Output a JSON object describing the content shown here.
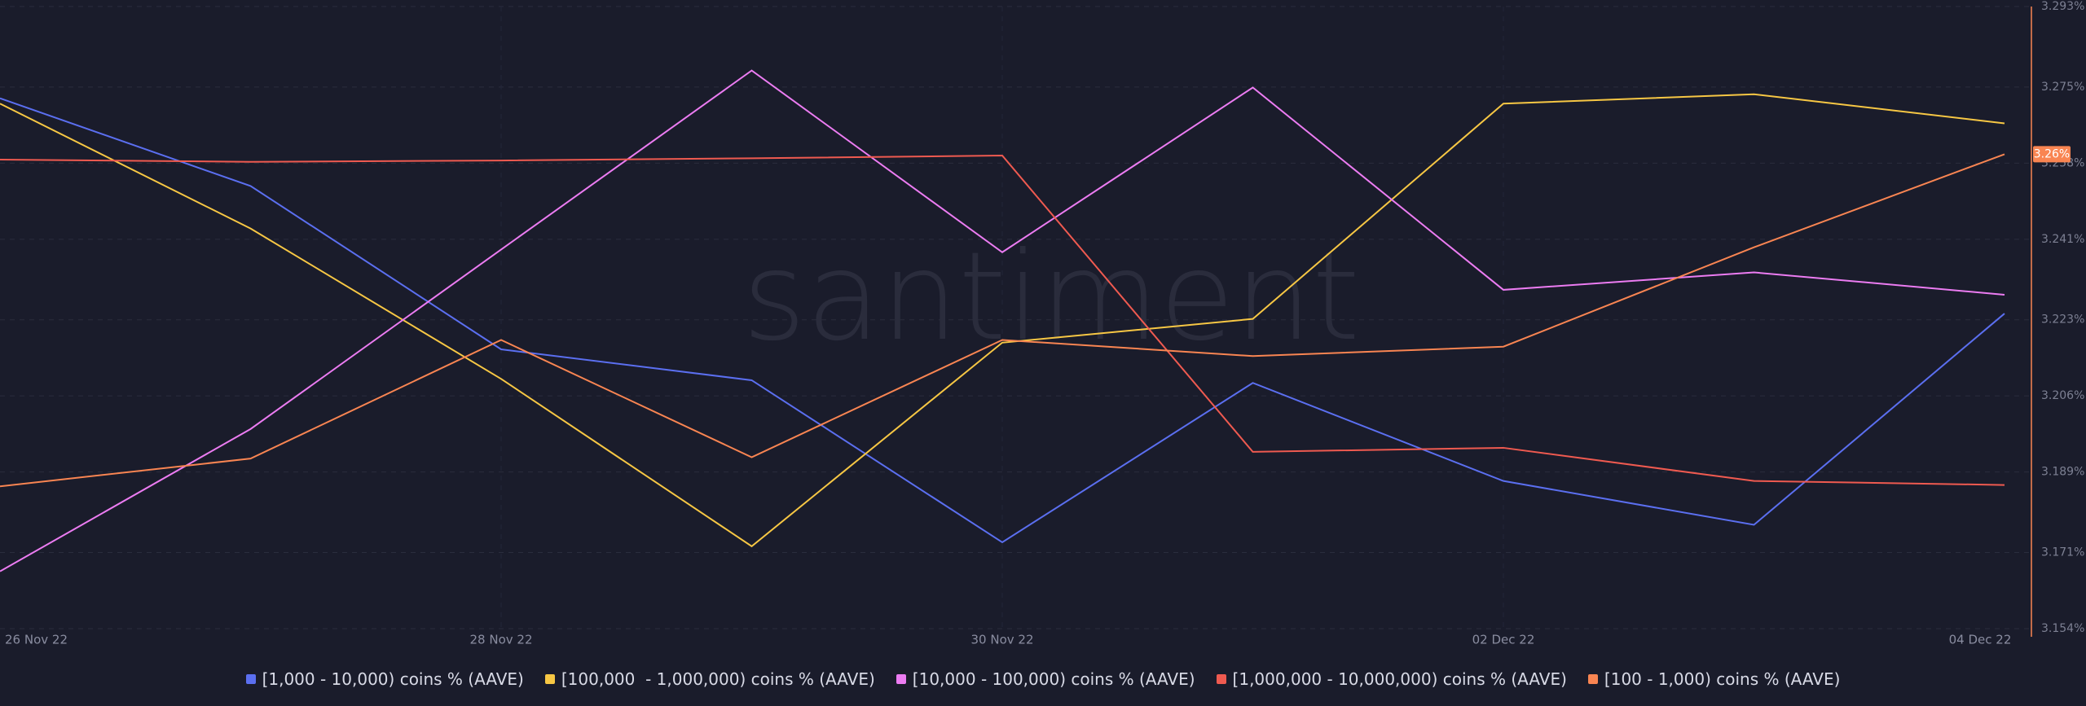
{
  "chart_data": {
    "type": "line",
    "watermark": "santiment",
    "categories": [
      "26 Nov 22",
      null,
      "28 Nov 22",
      null,
      "30 Nov 22",
      null,
      "02 Dec 22",
      null,
      "04 Dec 22"
    ],
    "series": [
      {
        "name": "[1,000 - 10,000) coins % (AAVE)",
        "color": "#5b6ff0",
        "values": [
          3.2725,
          3.2529,
          3.2164,
          3.2095,
          3.1733,
          3.2089,
          3.187,
          3.1772,
          3.2244
        ]
      },
      {
        "name": "[100,000  - 1,000,000) coins % (AAVE)",
        "color": "#f7c744",
        "values": [
          3.2713,
          3.2434,
          3.2098,
          3.1724,
          3.2179,
          3.2232,
          3.2713,
          3.2734,
          3.2669
        ]
      },
      {
        "name": "[10,000 - 100,000) coins % (AAVE)",
        "color": "#ec7cf2",
        "values": [
          3.1668,
          3.1986,
          3.2387,
          3.2787,
          3.2381,
          3.2749,
          3.2297,
          3.2336,
          3.2286
        ]
      },
      {
        "name": "[1,000,000 - 10,000,000) coins % (AAVE)",
        "color": "#ef5a50",
        "values": [
          3.2588,
          3.2583,
          3.2586,
          3.2591,
          3.2597,
          3.1935,
          3.1944,
          3.187,
          3.1861
        ]
      },
      {
        "name": "[100 - 1,000) coins % (AAVE)",
        "color": "#f98552",
        "values": [
          3.1858,
          3.192,
          3.2185,
          3.1923,
          3.2185,
          3.2149,
          3.217,
          3.2392,
          3.26
        ],
        "value_labels": [
          null,
          null,
          null,
          null,
          null,
          null,
          null,
          null,
          "3.26%"
        ]
      }
    ],
    "ylim": [
      3.154,
      3.293
    ],
    "yticks": [
      {
        "value": 3.154,
        "label": "3.154%"
      },
      {
        "value": 3.171,
        "label": "3.171%"
      },
      {
        "value": 3.189,
        "label": "3.189%"
      },
      {
        "value": 3.206,
        "label": "3.206%"
      },
      {
        "value": 3.223,
        "label": "3.223%"
      },
      {
        "value": 3.241,
        "label": "3.241%"
      },
      {
        "value": 3.258,
        "label": "3.258%"
      },
      {
        "value": 3.275,
        "label": "3.275%"
      },
      {
        "value": 3.293,
        "label": "3.293%"
      }
    ],
    "grid": true
  }
}
